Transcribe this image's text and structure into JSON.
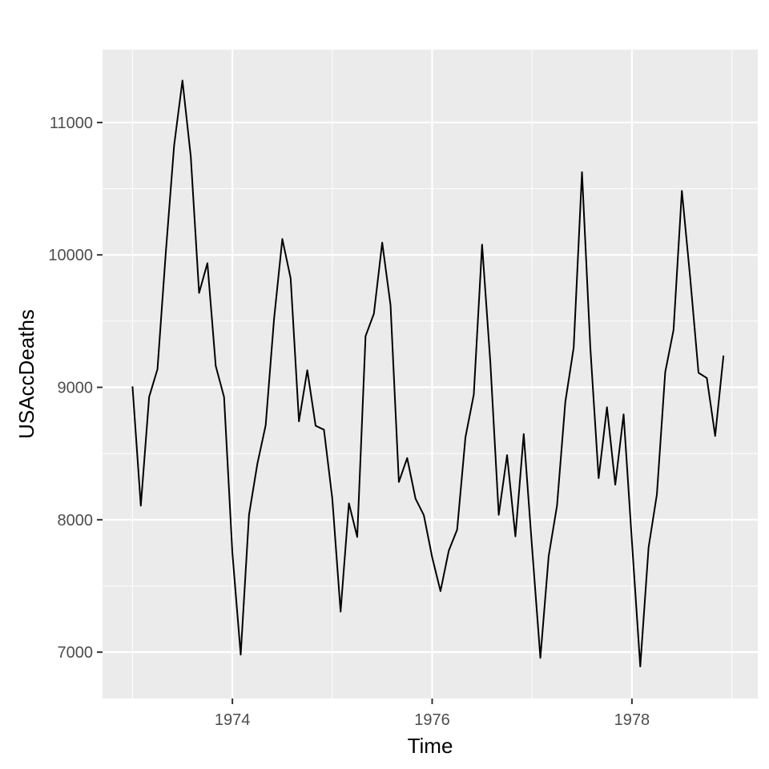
{
  "chart_data": {
    "type": "line",
    "xlabel": "Time",
    "ylabel": "USAccDeaths",
    "xlim": [
      1972.7,
      1979.26
    ],
    "ylim": [
      6650,
      11550
    ],
    "x_ticks": [
      1974,
      1976,
      1978
    ],
    "x_tick_labels": [
      "1974",
      "1976",
      "1978"
    ],
    "x_minor_ticks": [
      1973,
      1975,
      1977,
      1979
    ],
    "y_ticks": [
      7000,
      8000,
      9000,
      10000,
      11000
    ],
    "y_tick_labels": [
      "7000",
      "8000",
      "9000",
      "10000",
      "11000"
    ],
    "y_minor_ticks": [
      7500,
      8500,
      9500,
      10500
    ],
    "grid": true,
    "x_start": 1973,
    "x_step": 0.0833333,
    "series": [
      {
        "color": "#000000",
        "values": [
          9007,
          8106,
          8928,
          9137,
          10017,
          10826,
          11317,
          10744,
          9713,
          9938,
          9161,
          8927,
          7750,
          6981,
          8038,
          8422,
          8714,
          9512,
          10120,
          9823,
          8743,
          9129,
          8710,
          8680,
          8162,
          7306,
          8124,
          7870,
          9387,
          9556,
          10093,
          9620,
          8285,
          8466,
          8160,
          8034,
          7717,
          7461,
          7767,
          7925,
          8623,
          8945,
          10078,
          9179,
          8037,
          8488,
          7874,
          8647,
          7792,
          6957,
          7726,
          8106,
          8890,
          9299,
          10625,
          9302,
          8314,
          8850,
          8265,
          8796,
          7836,
          6892,
          7791,
          8192,
          9115,
          9434,
          10484,
          9827,
          9110,
          9070,
          8633,
          9240
        ]
      }
    ]
  },
  "colors": {
    "panel": "#ebebeb",
    "grid_major": "#ffffff",
    "line": "#000000",
    "tick": "#333333"
  }
}
